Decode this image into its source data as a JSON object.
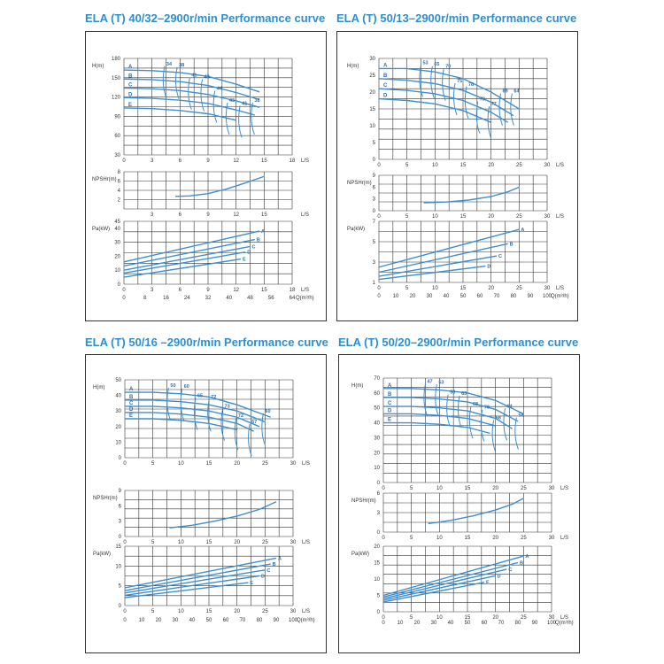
{
  "charts": [
    {
      "title": "ELA (T) 40/32–2900r/min Performance curve"
    },
    {
      "title": "ELA (T) 50/13–2900r/min Performance curve"
    },
    {
      "title": "ELA (T) 50/16 –2900r/min Performance curve"
    },
    {
      "title": "ELA (T)  50/20–2900r/min Performance curve"
    }
  ],
  "colors": {
    "curve": "#3d8fd1",
    "grid": "#333333",
    "title": "#2e8fd0",
    "label": "#2e6fae"
  },
  "chart_data": [
    {
      "type": "line",
      "title": "ELA (T) 40/32–2900r/min Performance curve",
      "head": {
        "ylabel": "H(m)",
        "yticks": [
          "180",
          "150",
          "120",
          "90",
          "60",
          "30"
        ],
        "xticks": [
          "0",
          "3",
          "6",
          "9",
          "12",
          "15",
          "18"
        ],
        "xunit": "L/S",
        "xlim": [
          0,
          18
        ],
        "ylim": [
          30,
          180
        ],
        "curves": [
          {
            "name": "A",
            "x": [
              0,
              3,
              6,
              9,
              12,
              14.5
            ],
            "y": [
              162,
              161,
              158,
              152,
              140,
              128
            ]
          },
          {
            "name": "B",
            "x": [
              0,
              3,
              6,
              9,
              12,
              14.5
            ],
            "y": [
              148,
              147,
              144,
              138,
              127,
              116
            ]
          },
          {
            "name": "C",
            "x": [
              0,
              3,
              6,
              9,
              12,
              14.5
            ],
            "y": [
              134,
              133,
              130,
              124,
              114,
              104
            ]
          },
          {
            "name": "D",
            "x": [
              0,
              3,
              6,
              9,
              12,
              14
            ],
            "y": [
              119,
              118,
              115,
              110,
              100,
              92
            ]
          },
          {
            "name": "E",
            "x": [
              0,
              3,
              6,
              9,
              12
            ],
            "y": [
              103,
              102,
              99,
              94,
              84
            ]
          }
        ],
        "efficiency_labels": [
          "34",
          "38",
          "41",
          "43",
          "44",
          "43",
          "41",
          "38"
        ]
      },
      "npsh": {
        "ylabel": "NPSHr(m)",
        "yticks": [
          "8",
          "6",
          "4",
          "2"
        ],
        "xticks": [
          "3",
          "6",
          "9",
          "12",
          "15"
        ],
        "xunit": "L/S",
        "xlim": [
          0,
          18
        ],
        "ylim": [
          0,
          8
        ],
        "x": [
          5.5,
          7,
          9,
          11,
          13,
          15
        ],
        "y": [
          2.7,
          2.8,
          3.3,
          4.3,
          5.6,
          7.0
        ]
      },
      "power": {
        "ylabel": "Pa(kW)",
        "yticks": [
          "45",
          "40",
          "30",
          "20",
          "10",
          "0"
        ],
        "xticks": [
          "0",
          "3",
          "6",
          "9",
          "12",
          "15",
          "18"
        ],
        "xunit": "L/S",
        "xlim": [
          0,
          18
        ],
        "ylim": [
          0,
          45
        ],
        "curves": [
          {
            "name": "A",
            "x": [
              0,
              14.5
            ],
            "y": [
              16,
              38
            ]
          },
          {
            "name": "B",
            "x": [
              0,
              14
            ],
            "y": [
              13,
              32
            ]
          },
          {
            "name": "C",
            "x": [
              0,
              13.5
            ],
            "y": [
              10,
              27
            ]
          },
          {
            "name": "D",
            "x": [
              0,
              13
            ],
            "y": [
              8,
              23
            ]
          },
          {
            "name": "E",
            "x": [
              0,
              12.5
            ],
            "y": [
              5,
              18
            ]
          }
        ]
      },
      "qticks": [
        "0",
        "8",
        "16",
        "24",
        "32",
        "40",
        "48",
        "56",
        "64"
      ],
      "qunit": "Q(m³/h)"
    },
    {
      "type": "line",
      "title": "ELA (T) 50/13–2900r/min Performance curve",
      "head": {
        "ylabel": "H(m)",
        "yticks": [
          "30",
          "25",
          "20",
          "15",
          "10",
          "5",
          "0"
        ],
        "xticks": [
          "0",
          "5",
          "10",
          "15",
          "20",
          "25",
          "30"
        ],
        "xunit": "L/S",
        "xlim": [
          0,
          30
        ],
        "ylim": [
          0,
          30
        ],
        "curves": [
          {
            "name": "A",
            "x": [
              0,
              5,
              10,
              15,
              20,
              25
            ],
            "y": [
              27,
              27,
              26,
              24,
              20,
              15
            ]
          },
          {
            "name": "B",
            "x": [
              0,
              5,
              10,
              15,
              20,
              24
            ],
            "y": [
              24,
              23.5,
              22.5,
              20.5,
              17,
              13
            ]
          },
          {
            "name": "C",
            "x": [
              0,
              5,
              10,
              15,
              20,
              23
            ],
            "y": [
              21,
              20.5,
              19.5,
              17.5,
              14,
              11
            ]
          },
          {
            "name": "D",
            "x": [
              0,
              5,
              10,
              15,
              20
            ],
            "y": [
              18,
              17.5,
              16.5,
              14.5,
              11
            ]
          }
        ],
        "efficiency_labels": [
          "53",
          "65",
          "70",
          "75",
          "78",
          "78",
          "77",
          "69",
          "64"
        ]
      },
      "npsh": {
        "ylabel": "NPSHr(m)",
        "yticks": [
          "9",
          "6",
          "3",
          "0"
        ],
        "xticks": [
          "0",
          "5",
          "10",
          "15",
          "20",
          "25",
          "30"
        ],
        "xunit": "L/S",
        "xlim": [
          0,
          30
        ],
        "ylim": [
          0,
          9
        ],
        "x": [
          8,
          12,
          16,
          20,
          23,
          25
        ],
        "y": [
          2,
          2.2,
          2.7,
          3.6,
          4.8,
          6.0
        ]
      },
      "power": {
        "ylabel": "Pa(kW)",
        "yticks": [
          "7",
          "5",
          "3",
          "1"
        ],
        "xticks": [
          "0",
          "5",
          "10",
          "15",
          "20",
          "25",
          "30"
        ],
        "xunit": "L/S",
        "xlim": [
          0,
          30
        ],
        "ylim": [
          1,
          7
        ],
        "curves": [
          {
            "name": "A",
            "x": [
              0,
              25
            ],
            "y": [
              2.5,
              6.2
            ]
          },
          {
            "name": "B",
            "x": [
              0,
              23
            ],
            "y": [
              2.0,
              4.8
            ]
          },
          {
            "name": "C",
            "x": [
              0,
              21
            ],
            "y": [
              1.6,
              3.6
            ]
          },
          {
            "name": "D",
            "x": [
              0,
              19
            ],
            "y": [
              1.3,
              2.6
            ]
          }
        ]
      },
      "qticks": [
        "0",
        "10",
        "20",
        "30",
        "40",
        "50",
        "60",
        "70",
        "80",
        "90",
        "100"
      ],
      "qunit": "Q(m³/h)"
    },
    {
      "type": "line",
      "title": "ELA (T) 50/16 –2900r/min Performance curve",
      "head": {
        "ylabel": "H(m)",
        "yticks": [
          "50",
          "40",
          "30",
          "20",
          "10",
          "0"
        ],
        "xticks": [
          "0",
          "5",
          "10",
          "15",
          "20",
          "25",
          "30"
        ],
        "xunit": "L/S",
        "xlim": [
          0,
          30
        ],
        "ylim": [
          0,
          50
        ],
        "curves": [
          {
            "name": "A",
            "x": [
              0,
              5,
              10,
              15,
              20,
              26
            ],
            "y": [
              42,
              42,
              41,
              39,
              34,
              26
            ]
          },
          {
            "name": "B",
            "x": [
              0,
              5,
              10,
              15,
              20,
              25
            ],
            "y": [
              37,
              37,
              36,
              34,
              30,
              23
            ]
          },
          {
            "name": "C",
            "x": [
              0,
              5,
              10,
              15,
              20,
              24
            ],
            "y": [
              33,
              33,
              32,
              30,
              26,
              20
            ]
          },
          {
            "name": "D",
            "x": [
              0,
              5,
              10,
              15,
              20,
              23
            ],
            "y": [
              29,
              29,
              28,
              26,
              22,
              17
            ]
          },
          {
            "name": "E",
            "x": [
              0,
              5,
              10,
              15,
              20
            ],
            "y": [
              25,
              25,
              24,
              22,
              18
            ]
          }
        ],
        "efficiency_labels": [
          "50",
          "60",
          "65",
          "72",
          "73",
          "72",
          "67",
          "60"
        ]
      },
      "npsh": {
        "ylabel": "NPSHr(m)",
        "yticks": [
          "9",
          "6",
          "3",
          "0"
        ],
        "xticks": [
          "0",
          "5",
          "10",
          "15",
          "20",
          "25",
          "30"
        ],
        "xunit": "L/S",
        "xlim": [
          0,
          30
        ],
        "ylim": [
          0,
          9
        ],
        "x": [
          8,
          12,
          16,
          20,
          24,
          27
        ],
        "y": [
          1.7,
          2.2,
          3.0,
          4.0,
          5.3,
          6.8
        ]
      },
      "power": {
        "ylabel": "Pa(kW)",
        "yticks": [
          "15",
          "10",
          "5",
          "0"
        ],
        "xticks": [
          "0",
          "5",
          "10",
          "15",
          "20",
          "25",
          "30"
        ],
        "xunit": "L/S",
        "xlim": [
          0,
          30
        ],
        "ylim": [
          0,
          15
        ],
        "curves": [
          {
            "name": "A",
            "x": [
              0,
              27
            ],
            "y": [
              4.5,
              12
            ]
          },
          {
            "name": "B",
            "x": [
              0,
              26
            ],
            "y": [
              3.8,
              10.5
            ]
          },
          {
            "name": "C",
            "x": [
              0,
              25
            ],
            "y": [
              3.2,
              9
            ]
          },
          {
            "name": "D",
            "x": [
              0,
              24
            ],
            "y": [
              2.6,
              7.5
            ]
          },
          {
            "name": "E",
            "x": [
              0,
              22
            ],
            "y": [
              2,
              5.8
            ]
          }
        ]
      },
      "qticks": [
        "0",
        "10",
        "20",
        "30",
        "40",
        "50",
        "60",
        "70",
        "80",
        "90",
        "100"
      ],
      "qunit": "Q(m³/h)"
    },
    {
      "type": "line",
      "title": "ELA (T)  50/20–2900r/min Performance curve",
      "head": {
        "ylabel": "H(m)",
        "yticks": [
          "70",
          "60",
          "50",
          "40",
          "30",
          "20",
          "10",
          "0"
        ],
        "xticks": [
          "0",
          "5",
          "10",
          "15",
          "20",
          "25",
          "30"
        ],
        "xunit": "L/S",
        "xlim": [
          0,
          30
        ],
        "ylim": [
          0,
          70
        ],
        "curves": [
          {
            "name": "A",
            "x": [
              0,
              5,
              10,
              15,
              20,
              25
            ],
            "y": [
              63,
              63,
              62,
              60,
              55,
              46
            ]
          },
          {
            "name": "B",
            "x": [
              0,
              5,
              10,
              15,
              20,
              24
            ],
            "y": [
              57,
              57,
              56,
              54,
              49,
              41
            ]
          },
          {
            "name": "C",
            "x": [
              0,
              5,
              10,
              15,
              20,
              23
            ],
            "y": [
              51,
              51,
              50,
              48,
              43,
              36
            ]
          },
          {
            "name": "D",
            "x": [
              0,
              5,
              10,
              15,
              20
            ],
            "y": [
              46,
              46,
              45,
              43,
              38
            ]
          },
          {
            "name": "E",
            "x": [
              0,
              5,
              10,
              15,
              19
            ],
            "y": [
              40,
              40,
              39,
              37,
              33
            ]
          }
        ],
        "efficiency_labels": [
          "47",
          "53",
          "58",
          "63",
          "68",
          "70",
          "68",
          "64",
          "58"
        ]
      },
      "npsh": {
        "ylabel": "NPSHr(m)",
        "yticks": [
          "6",
          "3",
          "0"
        ],
        "xticks": [
          "0",
          "5",
          "10",
          "15",
          "20",
          "25",
          "30"
        ],
        "xunit": "L/S",
        "xlim": [
          0,
          30
        ],
        "ylim": [
          0,
          6
        ],
        "x": [
          8,
          12,
          16,
          20,
          23,
          25
        ],
        "y": [
          1.3,
          1.8,
          2.5,
          3.4,
          4.3,
          5.2
        ]
      },
      "power": {
        "ylabel": "Pa(kW)",
        "yticks": [
          "20",
          "15",
          "10",
          "5",
          "0"
        ],
        "xticks": [
          "0",
          "5",
          "10",
          "15",
          "20",
          "25",
          "30"
        ],
        "xunit": "L/S",
        "xlim": [
          0,
          30
        ],
        "ylim": [
          0,
          20
        ],
        "curves": [
          {
            "name": "A",
            "x": [
              0,
              25
            ],
            "y": [
              5,
              17
            ]
          },
          {
            "name": "B",
            "x": [
              0,
              24
            ],
            "y": [
              4.5,
              15
            ]
          },
          {
            "name": "C",
            "x": [
              0,
              22
            ],
            "y": [
              4,
              13
            ]
          },
          {
            "name": "D",
            "x": [
              0,
              20
            ],
            "y": [
              3.5,
              11
            ]
          },
          {
            "name": "E",
            "x": [
              0,
              18
            ],
            "y": [
              3,
              9
            ]
          }
        ]
      },
      "qticks": [
        "0",
        "10",
        "20",
        "30",
        "40",
        "50",
        "60",
        "70",
        "80",
        "90",
        "100"
      ],
      "qunit": "Q(m³/h)"
    }
  ]
}
